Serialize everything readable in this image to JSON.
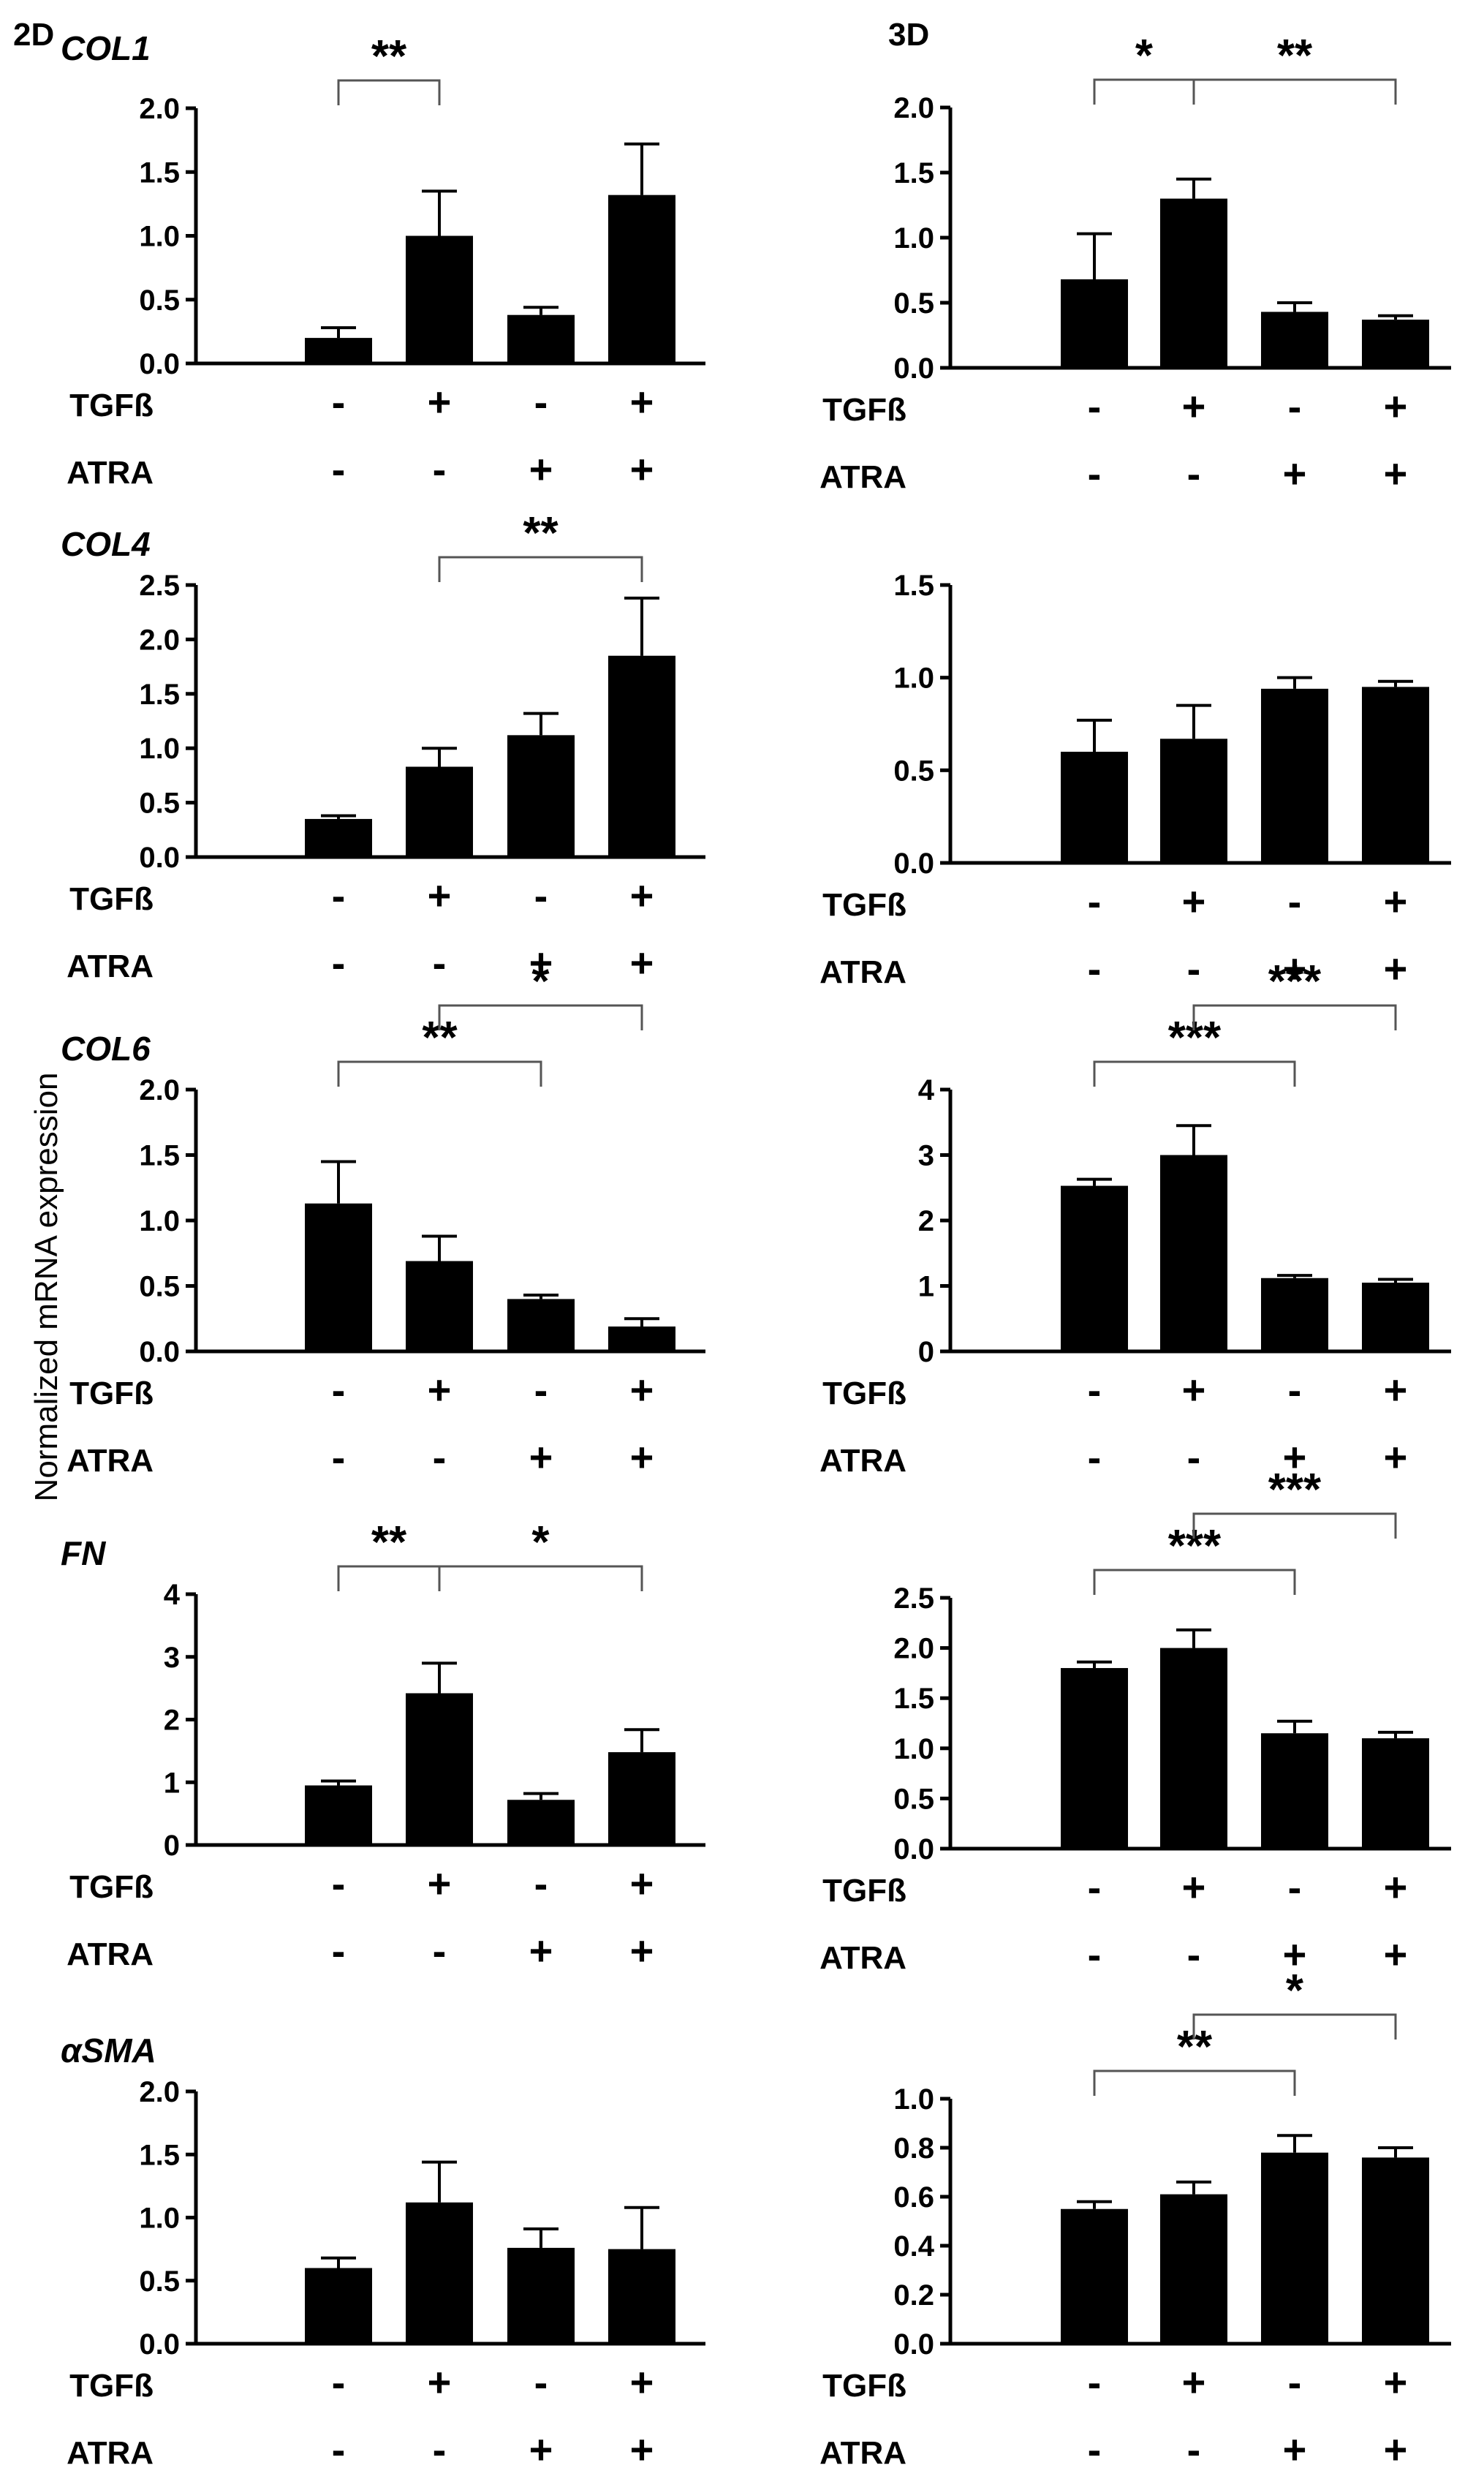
{
  "figure": {
    "panel_labels": [
      "2D",
      "3D"
    ],
    "y_axis_label": "Normalized mRNA expression",
    "row_labels": [
      "TGFß",
      "ATRA"
    ]
  },
  "chart_data": [
    {
      "type": "bar",
      "panel": "2D",
      "title": "COL1",
      "categories": [
        "-/-",
        "+/-",
        "-/+",
        "+/+"
      ],
      "treatments": {
        "TGFß": [
          "-",
          "+",
          "-",
          "+"
        ],
        "ATRA": [
          "-",
          "-",
          "+",
          "+"
        ]
      },
      "values": [
        0.2,
        1.0,
        0.38,
        1.32
      ],
      "errors": [
        0.08,
        0.35,
        0.06,
        0.4
      ],
      "ylim": [
        0,
        2.0
      ],
      "yticks": [
        "0.0",
        "0.5",
        "1.0",
        "1.5",
        "2.0"
      ],
      "significance": [
        {
          "from": 0,
          "to": 1,
          "label": "**",
          "level": 1
        }
      ]
    },
    {
      "type": "bar",
      "panel": "3D",
      "title": "",
      "categories": [
        "-/-",
        "+/-",
        "-/+",
        "+/+"
      ],
      "treatments": {
        "TGFß": [
          "-",
          "+",
          "-",
          "+"
        ],
        "ATRA": [
          "-",
          "-",
          "+",
          "+"
        ]
      },
      "values": [
        0.68,
        1.3,
        0.43,
        0.37
      ],
      "errors": [
        0.35,
        0.15,
        0.07,
        0.03
      ],
      "ylim": [
        0,
        2.0
      ],
      "yticks": [
        "0.0",
        "0.5",
        "1.0",
        "1.5",
        "2.0"
      ],
      "significance": [
        {
          "from": 0,
          "to": 1,
          "label": "*",
          "level": 1
        },
        {
          "from": 1,
          "to": 3,
          "label": "**",
          "level": 1
        }
      ]
    },
    {
      "type": "bar",
      "panel": "2D",
      "title": "COL4",
      "categories": [
        "-/-",
        "+/-",
        "-/+",
        "+/+"
      ],
      "treatments": {
        "TGFß": [
          "-",
          "+",
          "-",
          "+"
        ],
        "ATRA": [
          "-",
          "-",
          "+",
          "+"
        ]
      },
      "values": [
        0.35,
        0.83,
        1.12,
        1.85
      ],
      "errors": [
        0.03,
        0.17,
        0.2,
        0.53
      ],
      "ylim": [
        0,
        2.5
      ],
      "yticks": [
        "0.0",
        "0.5",
        "1.0",
        "1.5",
        "2.0",
        "2.5"
      ],
      "significance": [
        {
          "from": 1,
          "to": 3,
          "label": "**",
          "level": 1
        }
      ]
    },
    {
      "type": "bar",
      "panel": "3D",
      "title": "",
      "categories": [
        "-/-",
        "+/-",
        "-/+",
        "+/+"
      ],
      "treatments": {
        "TGFß": [
          "-",
          "+",
          "-",
          "+"
        ],
        "ATRA": [
          "-",
          "-",
          "+",
          "+"
        ]
      },
      "values": [
        0.6,
        0.67,
        0.94,
        0.95
      ],
      "errors": [
        0.17,
        0.18,
        0.06,
        0.03
      ],
      "ylim": [
        0,
        1.5
      ],
      "yticks": [
        "0.0",
        "0.5",
        "1.0",
        "1.5"
      ],
      "significance": []
    },
    {
      "type": "bar",
      "panel": "2D",
      "title": "COL6",
      "categories": [
        "-/-",
        "+/-",
        "-/+",
        "+/+"
      ],
      "treatments": {
        "TGFß": [
          "-",
          "+",
          "-",
          "+"
        ],
        "ATRA": [
          "-",
          "-",
          "+",
          "+"
        ]
      },
      "values": [
        1.13,
        0.69,
        0.4,
        0.19
      ],
      "errors": [
        0.32,
        0.19,
        0.03,
        0.06
      ],
      "ylim": [
        0,
        2.0
      ],
      "yticks": [
        "0.0",
        "0.5",
        "1.0",
        "1.5",
        "2.0"
      ],
      "significance": [
        {
          "from": 0,
          "to": 2,
          "label": "**",
          "level": 1
        },
        {
          "from": 1,
          "to": 3,
          "label": "*",
          "level": 2
        }
      ]
    },
    {
      "type": "bar",
      "panel": "3D",
      "title": "",
      "categories": [
        "-/-",
        "+/-",
        "-/+",
        "+/+"
      ],
      "treatments": {
        "TGFß": [
          "-",
          "+",
          "-",
          "+"
        ],
        "ATRA": [
          "-",
          "-",
          "+",
          "+"
        ]
      },
      "values": [
        2.53,
        3.0,
        1.12,
        1.05
      ],
      "errors": [
        0.1,
        0.45,
        0.04,
        0.05
      ],
      "ylim": [
        0,
        4
      ],
      "yticks": [
        "0",
        "1",
        "2",
        "3",
        "4"
      ],
      "significance": [
        {
          "from": 0,
          "to": 2,
          "label": "***",
          "level": 1
        },
        {
          "from": 1,
          "to": 3,
          "label": "***",
          "level": 2
        }
      ]
    },
    {
      "type": "bar",
      "panel": "2D",
      "title": "FN",
      "categories": [
        "-/-",
        "+/-",
        "-/+",
        "+/+"
      ],
      "treatments": {
        "TGFß": [
          "-",
          "+",
          "-",
          "+"
        ],
        "ATRA": [
          "-",
          "-",
          "+",
          "+"
        ]
      },
      "values": [
        0.95,
        2.42,
        0.72,
        1.48
      ],
      "errors": [
        0.07,
        0.48,
        0.1,
        0.36
      ],
      "ylim": [
        0,
        4
      ],
      "yticks": [
        "0",
        "1",
        "2",
        "3",
        "4"
      ],
      "significance": [
        {
          "from": 0,
          "to": 1,
          "label": "**",
          "level": 1
        },
        {
          "from": 1,
          "to": 3,
          "label": "*",
          "level": 1
        }
      ]
    },
    {
      "type": "bar",
      "panel": "3D",
      "title": "",
      "categories": [
        "-/-",
        "+/-",
        "-/+",
        "+/+"
      ],
      "treatments": {
        "TGFß": [
          "-",
          "+",
          "-",
          "+"
        ],
        "ATRA": [
          "-",
          "-",
          "+",
          "+"
        ]
      },
      "values": [
        1.8,
        2.0,
        1.15,
        1.1
      ],
      "errors": [
        0.06,
        0.18,
        0.12,
        0.06
      ],
      "ylim": [
        0,
        2.5
      ],
      "yticks": [
        "0.0",
        "0.5",
        "1.0",
        "1.5",
        "2.0",
        "2.5"
      ],
      "significance": [
        {
          "from": 0,
          "to": 2,
          "label": "***",
          "level": 1
        },
        {
          "from": 1,
          "to": 3,
          "label": "***",
          "level": 2
        }
      ]
    },
    {
      "type": "bar",
      "panel": "2D",
      "title": "αSMA",
      "categories": [
        "-/-",
        "+/-",
        "-/+",
        "+/+"
      ],
      "treatments": {
        "TGFß": [
          "-",
          "+",
          "-",
          "+"
        ],
        "ATRA": [
          "-",
          "-",
          "+",
          "+"
        ]
      },
      "values": [
        0.6,
        1.12,
        0.76,
        0.75
      ],
      "errors": [
        0.08,
        0.32,
        0.15,
        0.33
      ],
      "ylim": [
        0,
        2.0
      ],
      "yticks": [
        "0.0",
        "0.5",
        "1.0",
        "1.5",
        "2.0"
      ],
      "significance": []
    },
    {
      "type": "bar",
      "panel": "3D",
      "title": "",
      "categories": [
        "-/-",
        "+/-",
        "-/+",
        "+/+"
      ],
      "treatments": {
        "TGFß": [
          "-",
          "+",
          "-",
          "+"
        ],
        "ATRA": [
          "-",
          "-",
          "+",
          "+"
        ]
      },
      "values": [
        0.55,
        0.61,
        0.78,
        0.76
      ],
      "errors": [
        0.03,
        0.05,
        0.07,
        0.04
      ],
      "ylim": [
        0,
        1.0
      ],
      "yticks": [
        "0.0",
        "0.2",
        "0.4",
        "0.6",
        "0.8",
        "1.0"
      ],
      "significance": [
        {
          "from": 0,
          "to": 2,
          "label": "**",
          "level": 1
        },
        {
          "from": 1,
          "to": 3,
          "label": "*",
          "level": 2
        }
      ]
    }
  ]
}
